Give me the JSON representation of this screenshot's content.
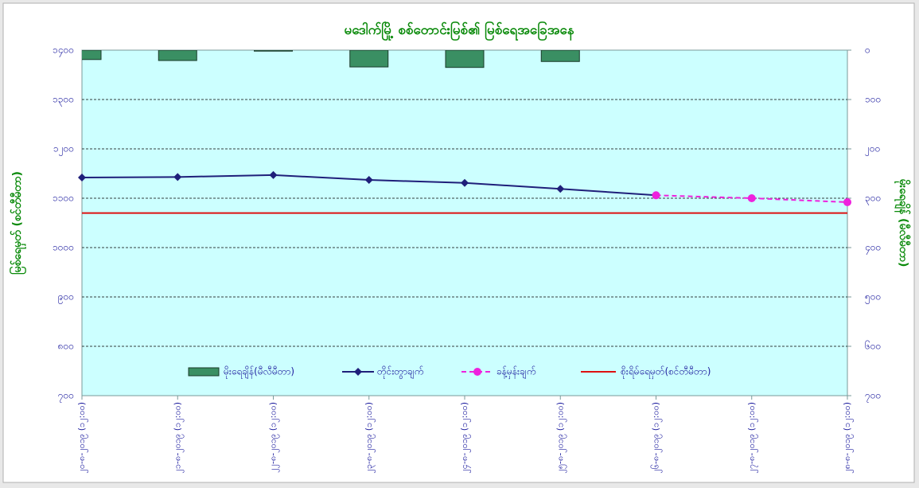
{
  "chart_data": {
    "type": "combo",
    "title": "မဒေါက်မြို့ စစ်တောင်းမြစ်၏ မြစ်ရေအခြေအနေ",
    "y_label": "မြစ်ရေမှတ် (စင်တီမီတာ)",
    "y2_label": "မိုးရေချိန် (မီလီမီတာ)",
    "categories": [
      "၂၀-၈-၂၀၁၉ (၁၂:၀၀)",
      "၂၁-၈-၂၀၁၉ (၁၂:၀၀)",
      "၂၂-၈-၂၀၁၉ (၁၂:၀၀)",
      "၂၃-၈-၂၀၁၉ (၁၂:၀၀)",
      "၂၄-၈-၂၀၁၉ (၁၂:၀၀)",
      "၂၅-၈-၂၀၁၉ (၁၂:၀၀)",
      "၂၆-၈-၂၀၁၉ (၁၂:၀၀)",
      "၂၇-၈-၂၀၁၉ (၁၂:၀၀)",
      "၂၈-၈-၂၀၁၉ (၁၂:၀၀)"
    ],
    "series": [
      {
        "name": "မိုးရေချိန်(မီလီမီတာ)",
        "type": "bar",
        "axis": "y2",
        "color": "#3a8f63",
        "values": [
          19,
          21,
          2,
          34,
          35,
          23,
          null,
          null,
          null
        ]
      },
      {
        "name": "တိုင်းတွာချက်",
        "type": "line",
        "color": "#1f1f7a",
        "marker": "diamond",
        "values": [
          1142,
          1143,
          1147,
          1137,
          1131,
          1119,
          1106,
          null,
          null
        ]
      },
      {
        "name": "ခန့်မှန်းချက်",
        "type": "line",
        "color": "#ee22dd",
        "marker": "circle",
        "dashed": true,
        "values": [
          null,
          null,
          null,
          null,
          null,
          null,
          1106,
          1100,
          1092
        ]
      }
    ],
    "reference_line": {
      "name": "စိုးရိမ်ရေမှတ်(စင်တီမီတာ)",
      "color": "#dd1111",
      "value": 1070
    },
    "ylim": [
      700,
      1400
    ],
    "yticks": [
      {
        "value": 700,
        "label": "၇၀၀"
      },
      {
        "value": 800,
        "label": "၈၀၀"
      },
      {
        "value": 900,
        "label": "၉၀၀"
      },
      {
        "value": 1000,
        "label": "၁၀၀၀"
      },
      {
        "value": 1100,
        "label": "၁၁၀၀"
      },
      {
        "value": 1200,
        "label": "၁၂၀၀"
      },
      {
        "value": 1300,
        "label": "၁၃၀၀"
      },
      {
        "value": 1400,
        "label": "၁၄၀၀"
      }
    ],
    "y2lim": [
      700,
      0
    ],
    "y2ticks": [
      {
        "value": 0,
        "label": "၀"
      },
      {
        "value": 100,
        "label": "၁၀၀"
      },
      {
        "value": 200,
        "label": "၂၀၀"
      },
      {
        "value": 300,
        "label": "၃၀၀"
      },
      {
        "value": 400,
        "label": "၄၀၀"
      },
      {
        "value": 500,
        "label": "၅၀၀"
      },
      {
        "value": 600,
        "label": "၆၀၀"
      },
      {
        "value": 700,
        "label": "၇၀၀"
      }
    ],
    "grid": true
  }
}
